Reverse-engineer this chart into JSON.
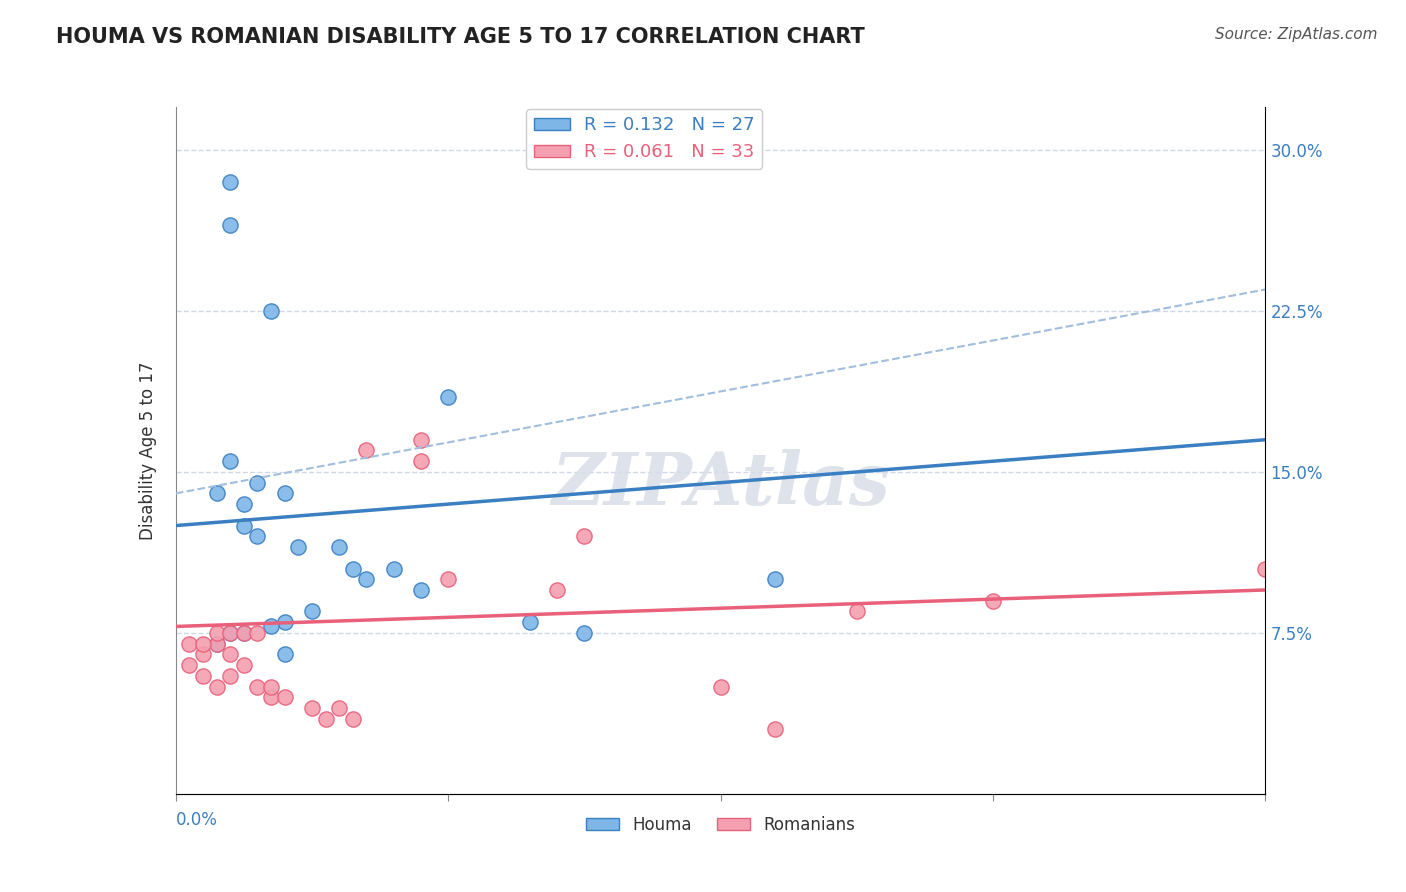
{
  "title": "HOUMA VS ROMANIAN DISABILITY AGE 5 TO 17 CORRELATION CHART",
  "source": "Source: ZipAtlas.com",
  "ylabel": "Disability Age 5 to 17",
  "xlim": [
    0.0,
    0.4
  ],
  "ylim": [
    0.0,
    0.32
  ],
  "ytick_labels": [
    "7.5%",
    "15.0%",
    "22.5%",
    "30.0%"
  ],
  "ytick_values": [
    0.075,
    0.15,
    0.225,
    0.3
  ],
  "legend_houma_r": "0.132",
  "legend_houma_n": "27",
  "legend_romanian_r": "0.061",
  "legend_romanian_n": "33",
  "houma_color": "#7EB6E8",
  "romanian_color": "#F4A0B0",
  "houma_line_color": "#3A7FC1",
  "romanian_line_color": "#E8607A",
  "dashed_line_color": "#A0BEDD",
  "grid_color": "#D0D8E8",
  "watermark_color": "#D8DDE8",
  "houma_x": [
    0.02,
    0.02,
    0.035,
    0.02,
    0.03,
    0.04,
    0.015,
    0.025,
    0.025,
    0.03,
    0.045,
    0.06,
    0.065,
    0.07,
    0.08,
    0.09,
    0.1,
    0.13,
    0.04,
    0.05,
    0.035,
    0.02,
    0.015,
    0.025,
    0.22,
    0.15,
    0.04
  ],
  "houma_y": [
    0.285,
    0.265,
    0.225,
    0.155,
    0.145,
    0.14,
    0.14,
    0.135,
    0.125,
    0.12,
    0.115,
    0.115,
    0.105,
    0.1,
    0.105,
    0.095,
    0.185,
    0.08,
    0.08,
    0.085,
    0.078,
    0.075,
    0.07,
    0.075,
    0.1,
    0.075,
    0.065
  ],
  "romanian_x": [
    0.005,
    0.01,
    0.015,
    0.02,
    0.025,
    0.01,
    0.015,
    0.02,
    0.03,
    0.035,
    0.04,
    0.05,
    0.055,
    0.06,
    0.065,
    0.07,
    0.09,
    0.09,
    0.1,
    0.14,
    0.15,
    0.25,
    0.3,
    0.005,
    0.01,
    0.015,
    0.02,
    0.025,
    0.03,
    0.035,
    0.4,
    0.2,
    0.22
  ],
  "romanian_y": [
    0.06,
    0.065,
    0.07,
    0.065,
    0.06,
    0.055,
    0.05,
    0.055,
    0.05,
    0.045,
    0.045,
    0.04,
    0.035,
    0.04,
    0.035,
    0.16,
    0.165,
    0.155,
    0.1,
    0.095,
    0.12,
    0.085,
    0.09,
    0.07,
    0.07,
    0.075,
    0.075,
    0.075,
    0.075,
    0.05,
    0.105,
    0.05,
    0.03
  ],
  "houma_trend_x": [
    0.0,
    0.4
  ],
  "houma_trend_y": [
    0.125,
    0.165
  ],
  "romanian_trend_x": [
    0.0,
    0.4
  ],
  "romanian_trend_y": [
    0.078,
    0.095
  ],
  "dashed_trend_x": [
    0.0,
    0.4
  ],
  "dashed_trend_y": [
    0.14,
    0.235
  ]
}
